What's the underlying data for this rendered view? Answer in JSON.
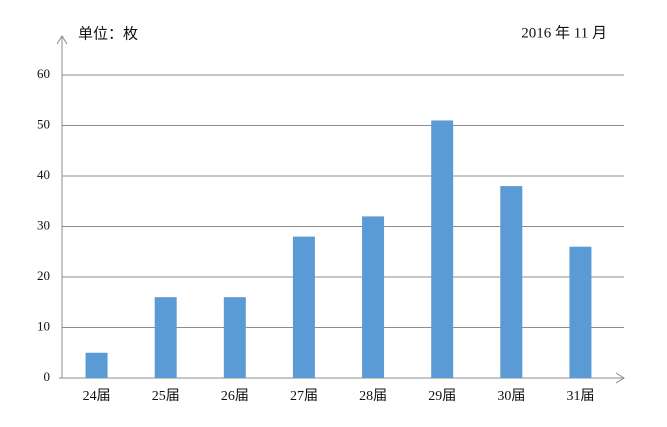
{
  "chart_data": {
    "type": "bar",
    "unit_label": "单位：枚",
    "date_label": "2016 年 11 月",
    "categories": [
      "24届",
      "25届",
      "26届",
      "27届",
      "28届",
      "29届",
      "30届",
      "31届"
    ],
    "values": [
      5,
      16,
      16,
      28,
      32,
      51,
      38,
      26
    ],
    "color": "#5b9bd5",
    "ylim": [
      0,
      60
    ],
    "yticks": [
      0,
      10,
      20,
      30,
      40,
      50,
      60
    ],
    "grid": true
  }
}
